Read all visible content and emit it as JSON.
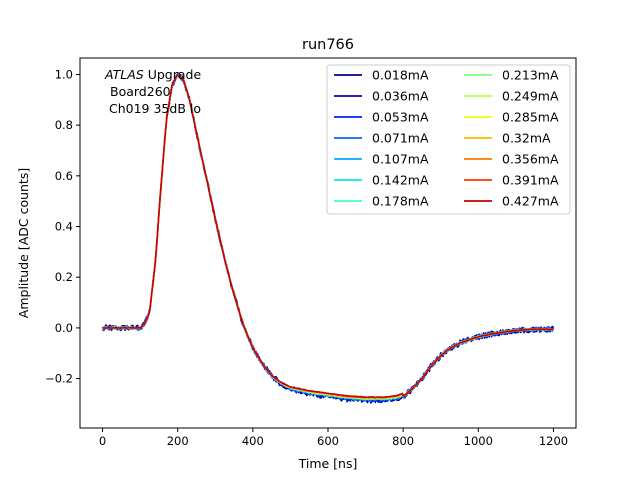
{
  "chart_data": {
    "type": "line",
    "title": "run766",
    "xlabel": "Time [ns]",
    "ylabel": "Amplitude [ADC counts]",
    "xlim": [
      -60,
      1260
    ],
    "ylim": [
      -0.395,
      1.065
    ],
    "xticks": [
      0,
      200,
      400,
      600,
      800,
      1000,
      1200
    ],
    "yticks": [
      -0.2,
      0.0,
      0.2,
      0.4,
      0.6,
      0.8,
      1.0
    ],
    "xtick_labels": [
      "0",
      "200",
      "400",
      "600",
      "800",
      "1000",
      "1200"
    ],
    "ytick_labels": [
      "−0.2",
      "0.0",
      "0.2",
      "0.4",
      "0.6",
      "0.8",
      "1.0"
    ],
    "annotation": {
      "italic": "ATLAS",
      "line1_rest": " Upgrade",
      "line2": "Board260",
      "line3": "Ch019 35dB lo"
    },
    "legend": {
      "placement": "top-right",
      "columns": 2
    },
    "pulse_shape": {
      "x": [
        0,
        100,
        110,
        125,
        140,
        155,
        170,
        185,
        200,
        215,
        230,
        250,
        275,
        300,
        325,
        350,
        375,
        400,
        425,
        450,
        475,
        500,
        550,
        600,
        650,
        700,
        750,
        780,
        800,
        825,
        850,
        875,
        900,
        925,
        950,
        1000,
        1050,
        1100,
        1150,
        1200
      ],
      "y": [
        0.0,
        0.0,
        0.01,
        0.06,
        0.25,
        0.55,
        0.82,
        0.96,
        1.0,
        0.98,
        0.91,
        0.77,
        0.6,
        0.43,
        0.27,
        0.13,
        0.01,
        -0.08,
        -0.14,
        -0.19,
        -0.22,
        -0.24,
        -0.26,
        -0.27,
        -0.28,
        -0.285,
        -0.285,
        -0.28,
        -0.27,
        -0.24,
        -0.2,
        -0.15,
        -0.11,
        -0.08,
        -0.06,
        -0.035,
        -0.02,
        -0.01,
        -0.005,
        -0.005
      ]
    },
    "series": [
      {
        "name": "0.018mA",
        "color": "#00007f",
        "noise": 0.012
      },
      {
        "name": "0.036mA",
        "color": "#0000c8",
        "noise": 0.011
      },
      {
        "name": "0.053mA",
        "color": "#0021ff",
        "noise": 0.009
      },
      {
        "name": "0.071mA",
        "color": "#0068ff",
        "noise": 0.007
      },
      {
        "name": "0.107mA",
        "color": "#00acff",
        "noise": 0.005
      },
      {
        "name": "0.142mA",
        "color": "#0ae5ee",
        "noise": 0.004
      },
      {
        "name": "0.178mA",
        "color": "#41ffb6",
        "noise": 0.003
      },
      {
        "name": "0.213mA",
        "color": "#7dff7a",
        "noise": 0.003
      },
      {
        "name": "0.249mA",
        "color": "#b6ff41",
        "noise": 0.002
      },
      {
        "name": "0.285mA",
        "color": "#eeff0a",
        "noise": 0.002
      },
      {
        "name": "0.32mA",
        "color": "#ffb900",
        "noise": 0.002
      },
      {
        "name": "0.356mA",
        "color": "#ff7a00",
        "noise": 0.002
      },
      {
        "name": "0.391mA",
        "color": "#ff3700",
        "noise": 0.001
      },
      {
        "name": "0.427mA",
        "color": "#c80000",
        "noise": 0.001
      }
    ]
  }
}
